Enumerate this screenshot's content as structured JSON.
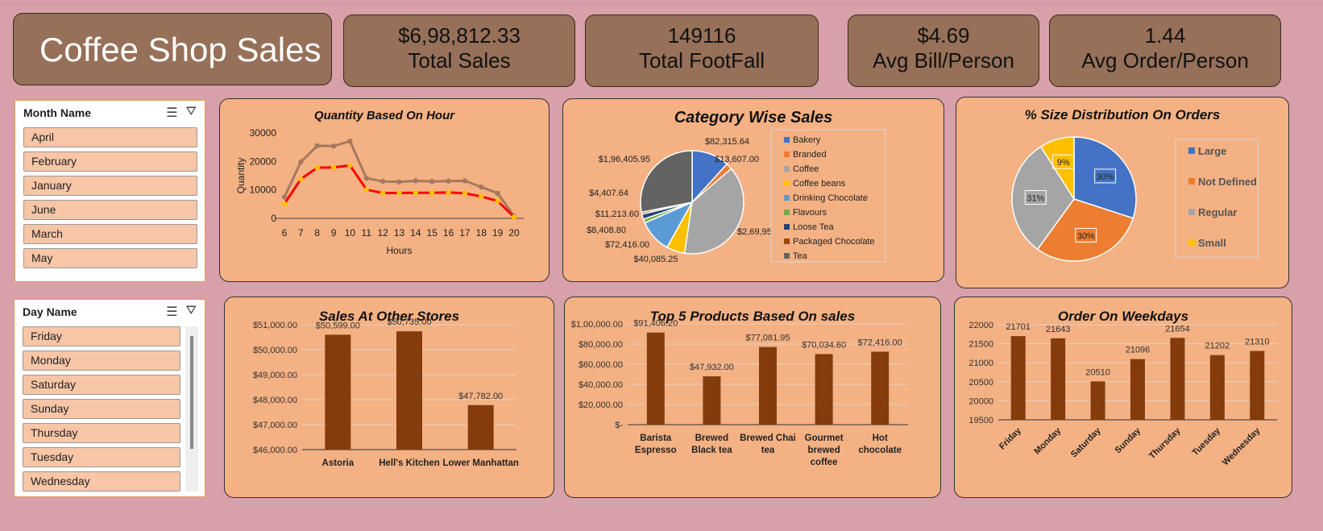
{
  "title": "Coffee Shop Sales",
  "kpis": [
    {
      "value": "$6,98,812.33",
      "label": "Total Sales"
    },
    {
      "value": "149116",
      "label": "Total FootFall"
    },
    {
      "value": "$4.69",
      "label": "Avg Bill/Person"
    },
    {
      "value": "1.44",
      "label": "Avg Order/Person"
    }
  ],
  "month_slicer": {
    "header": "Month Name",
    "items": [
      "April",
      "February",
      "January",
      "June",
      "March",
      "May"
    ]
  },
  "day_slicer": {
    "header": "Day Name",
    "items": [
      "Friday",
      "Monday",
      "Saturday",
      "Sunday",
      "Thursday",
      "Tuesday",
      "Wednesday"
    ]
  },
  "slicer_icons": [
    "multi-select-icon",
    "clear-filter-icon"
  ],
  "colors": {
    "background": "#d8a0a9",
    "card": "#967058",
    "panel": "#f4b183",
    "bar": "#843c0c"
  },
  "chart_data": [
    {
      "type": "line",
      "title": "Quantity Based On Hour",
      "xlabel": "Hours",
      "ylabel": "Quantity",
      "ylim": [
        0,
        30000
      ],
      "yticks": [
        "0",
        "10000",
        "20000",
        "30000"
      ],
      "x": [
        6,
        7,
        8,
        9,
        10,
        11,
        12,
        13,
        14,
        15,
        16,
        17,
        18,
        19,
        20
      ],
      "series": [
        {
          "color": "#a5795e",
          "values": [
            7500,
            19800,
            25500,
            25400,
            27100,
            14100,
            13000,
            12800,
            13200,
            13000,
            13100,
            13200,
            11000,
            8800,
            800
          ]
        },
        {
          "color": "#ff0000",
          "marker_color": "#ffc000",
          "values": [
            5100,
            13800,
            17800,
            17900,
            18600,
            10100,
            8900,
            8900,
            9000,
            9000,
            9100,
            8800,
            7700,
            6100,
            500
          ]
        }
      ]
    },
    {
      "type": "pie",
      "title": "Category Wise Sales",
      "labels": [
        "Bakery",
        "Branded",
        "Coffee",
        "Coffee beans",
        "Drinking Chocolate",
        "Flavours",
        "Loose Tea",
        "Packaged Chocolate",
        "Tea"
      ],
      "values": [
        82315.64,
        13607.0,
        269952.45,
        40085.25,
        72416.0,
        8408.8,
        11213.6,
        4407.64,
        196405.95
      ],
      "value_labels": [
        "$82,315.64",
        "$13,607.00",
        "$2,69,952.45",
        "$40,085.25",
        "$72,416.00",
        "$8,408.80",
        "$11,213.60",
        "$4,407.64",
        "$1,96,405.95"
      ],
      "colors": [
        "#4472c4",
        "#ed7d31",
        "#a5a5a5",
        "#ffc000",
        "#5b9bd5",
        "#70ad47",
        "#264478",
        "#9e480e",
        "#636363"
      ],
      "legend": "right"
    },
    {
      "type": "pie",
      "title": "% Size Distribution On Orders",
      "labels": [
        "Large",
        "Not Defined",
        "Regular",
        "Small"
      ],
      "values": [
        30,
        30,
        31,
        9
      ],
      "value_labels": [
        "30%",
        "30%",
        "31%",
        "9%"
      ],
      "colors": [
        "#4472c4",
        "#ed7d31",
        "#a5a5a5",
        "#ffc000"
      ],
      "legend": "right"
    },
    {
      "type": "bar",
      "title": "Sales At Other Stores",
      "categories": [
        "Astoria",
        "Hell's Kitchen",
        "Lower Manhattan"
      ],
      "values": [
        50599.0,
        50735.0,
        47782.0
      ],
      "value_labels": [
        "$50,599.00",
        "$50,735.00",
        "$47,782.00"
      ],
      "ylim": [
        46000,
        51000
      ],
      "yticks": [
        "$46,000.00",
        "$47,000.00",
        "$48,000.00",
        "$49,000.00",
        "$50,000.00",
        "$51,000.00"
      ]
    },
    {
      "type": "bar",
      "title": "Top 5 Products Based On sales",
      "categories": [
        [
          "Barista",
          "Espresso"
        ],
        [
          "Brewed",
          "Black tea"
        ],
        [
          "Brewed Chai",
          "tea"
        ],
        [
          "Gourmet",
          "brewed",
          "coffee"
        ],
        [
          "Hot",
          "chocolate"
        ]
      ],
      "values": [
        91406.2,
        47932.0,
        77081.95,
        70034.6,
        72416.0
      ],
      "value_labels": [
        "$91,406.20",
        "$47,932.00",
        "$77,081.95",
        "$70,034.60",
        "$72,416.00"
      ],
      "ylim": [
        0,
        100000
      ],
      "yticks": [
        "$-",
        "$20,000.00",
        "$40,000.00",
        "$60,000.00",
        "$80,000.00",
        "$1,00,000.00"
      ]
    },
    {
      "type": "bar",
      "title": "Order On Weekdays",
      "categories": [
        "Friday",
        "Monday",
        "Saturday",
        "Sunday",
        "Thursday",
        "Tuesday",
        "Wednesday"
      ],
      "values": [
        21701,
        21643,
        20510,
        21096,
        21654,
        21202,
        21310
      ],
      "value_labels": [
        "21701",
        "21643",
        "20510",
        "21096",
        "21654",
        "21202",
        "21310"
      ],
      "ylim": [
        19500,
        22000
      ],
      "yticks": [
        "19500",
        "20000",
        "20500",
        "21000",
        "21500",
        "22000"
      ]
    }
  ]
}
